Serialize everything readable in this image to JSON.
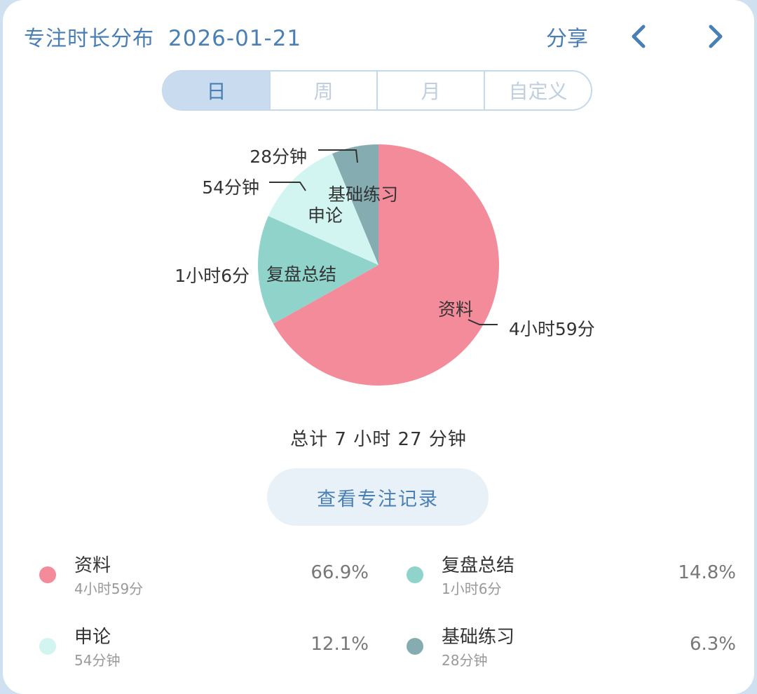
{
  "header": {
    "title": "专注时长分布",
    "date": "2026-01-21",
    "share_label": "分享"
  },
  "tabs": [
    {
      "label": "日",
      "active": true
    },
    {
      "label": "周",
      "active": false
    },
    {
      "label": "月",
      "active": false
    },
    {
      "label": "自定义",
      "active": false
    }
  ],
  "chart_data": {
    "type": "pie",
    "slices": [
      {
        "name": "资料",
        "value": 299,
        "value_label": "4小时59分",
        "color": "#f38b9b"
      },
      {
        "name": "复盘总结",
        "value": 66,
        "value_label": "1小时6分",
        "color": "#8fd3cb"
      },
      {
        "name": "申论",
        "value": 54,
        "value_label": "54分钟",
        "color": "#d2f5f1"
      },
      {
        "name": "基础练习",
        "value": 28,
        "value_label": "28分钟",
        "color": "#85adb1"
      }
    ]
  },
  "total_label": "总计 7 小时 27 分钟",
  "records_button_label": "查看专注记录",
  "legend": [
    {
      "name": "资料",
      "duration": "4小时59分",
      "percent": "66.9%",
      "color": "#f38b9b"
    },
    {
      "name": "复盘总结",
      "duration": "1小时6分",
      "percent": "14.8%",
      "color": "#8fd3cb"
    },
    {
      "name": "申论",
      "duration": "54分钟",
      "percent": "12.1%",
      "color": "#d2f5f1"
    },
    {
      "name": "基础练习",
      "duration": "28分钟",
      "percent": "6.3%",
      "color": "#85adb1"
    }
  ]
}
